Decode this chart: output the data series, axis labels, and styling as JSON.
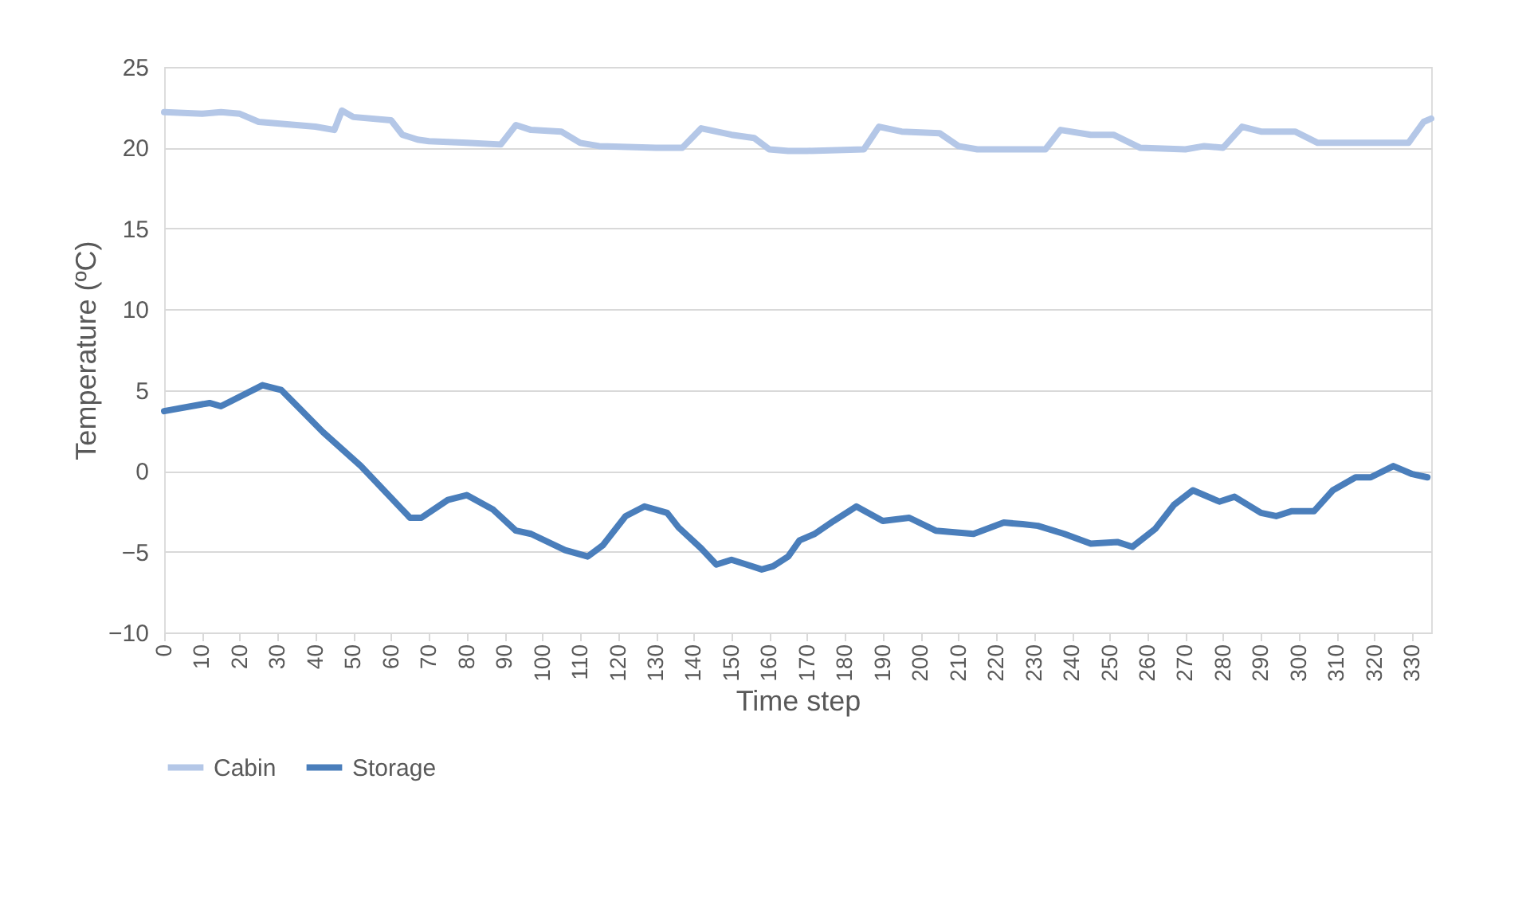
{
  "chart_data": {
    "type": "line",
    "xlabel": "Time step",
    "ylabel": "Temperature (ºC)",
    "xlim": [
      0,
      335
    ],
    "xticks": [
      0,
      10,
      20,
      30,
      40,
      50,
      60,
      70,
      80,
      90,
      100,
      110,
      120,
      130,
      140,
      150,
      160,
      170,
      180,
      190,
      200,
      210,
      220,
      230,
      240,
      250,
      260,
      270,
      280,
      290,
      300,
      310,
      320,
      330
    ],
    "ylim": [
      -10,
      25
    ],
    "yticks": [
      -10,
      -5,
      0,
      5,
      10,
      15,
      20,
      25
    ],
    "grid": "y",
    "legend": "bottom",
    "marker": "none",
    "line_style": "solid",
    "series": [
      {
        "name": "Cabin",
        "color": "#b4c7e7",
        "x": [
          0,
          10,
          15,
          20,
          25,
          40,
          45,
          47,
          50,
          60,
          63,
          67,
          70,
          80,
          89,
          93,
          97,
          105,
          110,
          115,
          130,
          137,
          142,
          150,
          156,
          160,
          165,
          170,
          185,
          189,
          195,
          205,
          210,
          215,
          233,
          237,
          245,
          251,
          258,
          270,
          275,
          280,
          285,
          290,
          299,
          305,
          329,
          333,
          335
        ],
        "values": [
          22.2,
          22.1,
          22.2,
          22.1,
          21.6,
          21.3,
          21.1,
          22.3,
          21.9,
          21.7,
          20.8,
          20.5,
          20.4,
          20.3,
          20.2,
          21.4,
          21.1,
          21.0,
          20.3,
          20.1,
          20.0,
          20.0,
          21.2,
          20.8,
          20.6,
          19.9,
          19.8,
          19.8,
          19.9,
          21.3,
          21.0,
          20.9,
          20.1,
          19.9,
          19.9,
          21.1,
          20.8,
          20.8,
          20.0,
          19.9,
          20.1,
          20.0,
          21.3,
          21.0,
          21.0,
          20.3,
          20.3,
          21.6,
          21.8
        ]
      },
      {
        "name": "Storage",
        "color": "#4a7ebb",
        "x": [
          0,
          12,
          15,
          26,
          31,
          42,
          52,
          65,
          68,
          75,
          80,
          87,
          93,
          97,
          106,
          112,
          116,
          122,
          127,
          133,
          136,
          142,
          146,
          150,
          154,
          158,
          161,
          165,
          168,
          172,
          177,
          183,
          190,
          197,
          204,
          209,
          214,
          222,
          227,
          231,
          238,
          245,
          252,
          256,
          262,
          267,
          272,
          279,
          283,
          290,
          294,
          298,
          304,
          309,
          315,
          319,
          325,
          330,
          334
        ],
        "values": [
          3.7,
          4.2,
          4.0,
          5.3,
          5.0,
          2.4,
          0.3,
          -2.9,
          -2.9,
          -1.8,
          -1.5,
          -2.4,
          -3.7,
          -3.9,
          -4.9,
          -5.3,
          -4.6,
          -2.8,
          -2.2,
          -2.6,
          -3.5,
          -4.8,
          -5.8,
          -5.5,
          -5.8,
          -6.1,
          -5.9,
          -5.3,
          -4.3,
          -3.9,
          -3.1,
          -2.2,
          -3.1,
          -2.9,
          -3.7,
          -3.8,
          -3.9,
          -3.2,
          -3.3,
          -3.4,
          -3.9,
          -4.5,
          -4.4,
          -4.7,
          -3.6,
          -2.1,
          -1.2,
          -1.9,
          -1.6,
          -2.6,
          -2.8,
          -2.5,
          -2.5,
          -1.2,
          -0.4,
          -0.4,
          0.3,
          -0.2,
          -0.4
        ]
      }
    ]
  }
}
